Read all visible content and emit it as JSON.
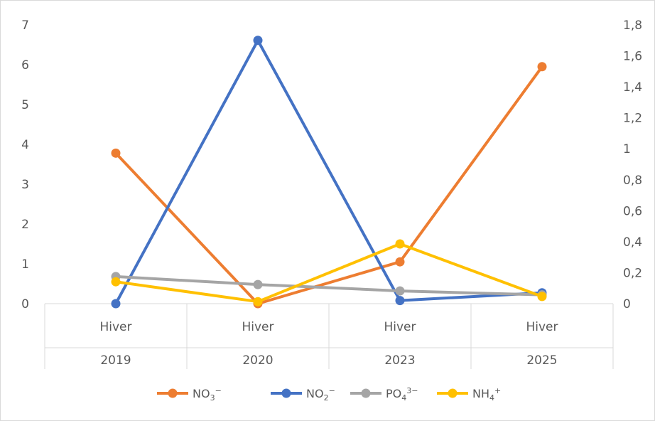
{
  "chart_data": {
    "type": "line",
    "categories": [
      {
        "top": "Hiver",
        "bottom": "2019"
      },
      {
        "top": "Hiver",
        "bottom": "2020"
      },
      {
        "top": "Hiver",
        "bottom": "2023"
      },
      {
        "top": "Hiver",
        "bottom": "2025"
      }
    ],
    "y_left": {
      "min": 0,
      "max": 7,
      "step": 1,
      "ticks": [
        "0",
        "1",
        "2",
        "3",
        "4",
        "5",
        "6",
        "7"
      ]
    },
    "y_right": {
      "min": 0,
      "max": 1.8,
      "step": 0.2,
      "ticks": [
        "0",
        "0,2",
        "0,4",
        "0,6",
        "0,8",
        "1",
        "1,2",
        "1,4",
        "1,6",
        "1,8"
      ]
    },
    "series": [
      {
        "name": "NO₃⁻",
        "axis": "left",
        "color": "#ED7D31",
        "values": [
          3.78,
          0.0,
          1.05,
          5.95
        ]
      },
      {
        "name": "NO₂⁻",
        "axis": "right",
        "color": "#4472C4",
        "values": [
          0.0,
          1.7,
          0.02,
          0.07
        ]
      },
      {
        "name": "PO₄³⁻",
        "axis": "left",
        "color": "#A5A5A5",
        "values": [
          0.68,
          0.48,
          0.32,
          0.22
        ]
      },
      {
        "name": "NH₄⁺",
        "axis": "left",
        "color": "#FFC000",
        "values": [
          0.55,
          0.05,
          1.5,
          0.18
        ]
      }
    ],
    "legend": {
      "position": "bottom",
      "items": [
        {
          "base": "NO",
          "sub": "3",
          "sup": "−"
        },
        {
          "base": "NO",
          "sub": "2",
          "sup": "−"
        },
        {
          "base": "PO",
          "sub": "4",
          "sup": "3−"
        },
        {
          "base": "NH",
          "sub": "4",
          "sup": "+"
        }
      ]
    },
    "grid": false
  }
}
